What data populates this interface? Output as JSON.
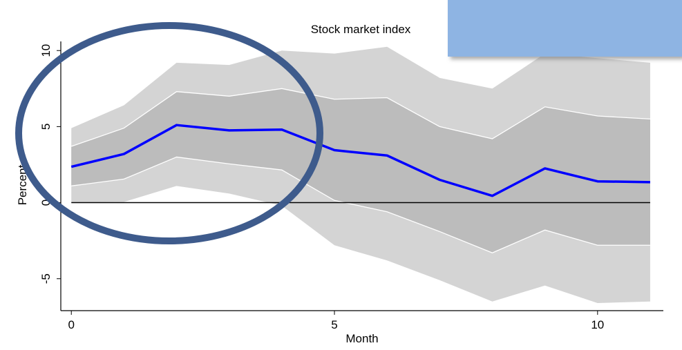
{
  "chart_data": {
    "type": "line",
    "title": "Stock market index",
    "x_label": "Month",
    "y_label": "Percent",
    "x": [
      0,
      1,
      2,
      3,
      4,
      5,
      6,
      7,
      8,
      9,
      10,
      11
    ],
    "series": [
      {
        "color": "#0000ff",
        "values": [
          2.36,
          3.2,
          5.1,
          4.75,
          4.8,
          3.45,
          3.1,
          1.5,
          0.45,
          2.25,
          1.4,
          1.35
        ]
      }
    ],
    "bands": [
      {
        "color": "#d4d4d4",
        "upper": [
          4.9,
          6.4,
          9.2,
          9.05,
          10.0,
          9.8,
          10.25,
          8.2,
          7.5,
          9.8,
          9.5,
          9.2
        ],
        "lower": [
          0.0,
          0.05,
          1.1,
          0.6,
          -0.2,
          -2.8,
          -3.8,
          -5.1,
          -6.5,
          -5.45,
          -6.6,
          -6.5
        ]
      },
      {
        "color": "#bcbcbc",
        "upper": [
          3.7,
          4.9,
          7.3,
          7.0,
          7.5,
          6.8,
          6.9,
          5.0,
          4.2,
          6.3,
          5.7,
          5.5
        ],
        "lower": [
          1.1,
          1.55,
          3.0,
          2.55,
          2.15,
          0.15,
          -0.6,
          -1.9,
          -3.3,
          -1.8,
          -2.8,
          -2.8
        ]
      }
    ],
    "xlim": [
      -0.2,
      11.25
    ],
    "ylim": [
      -7.1,
      10.6
    ],
    "xticks": [
      0,
      5,
      10
    ],
    "yticks": [
      -5,
      0,
      5,
      10
    ]
  }
}
